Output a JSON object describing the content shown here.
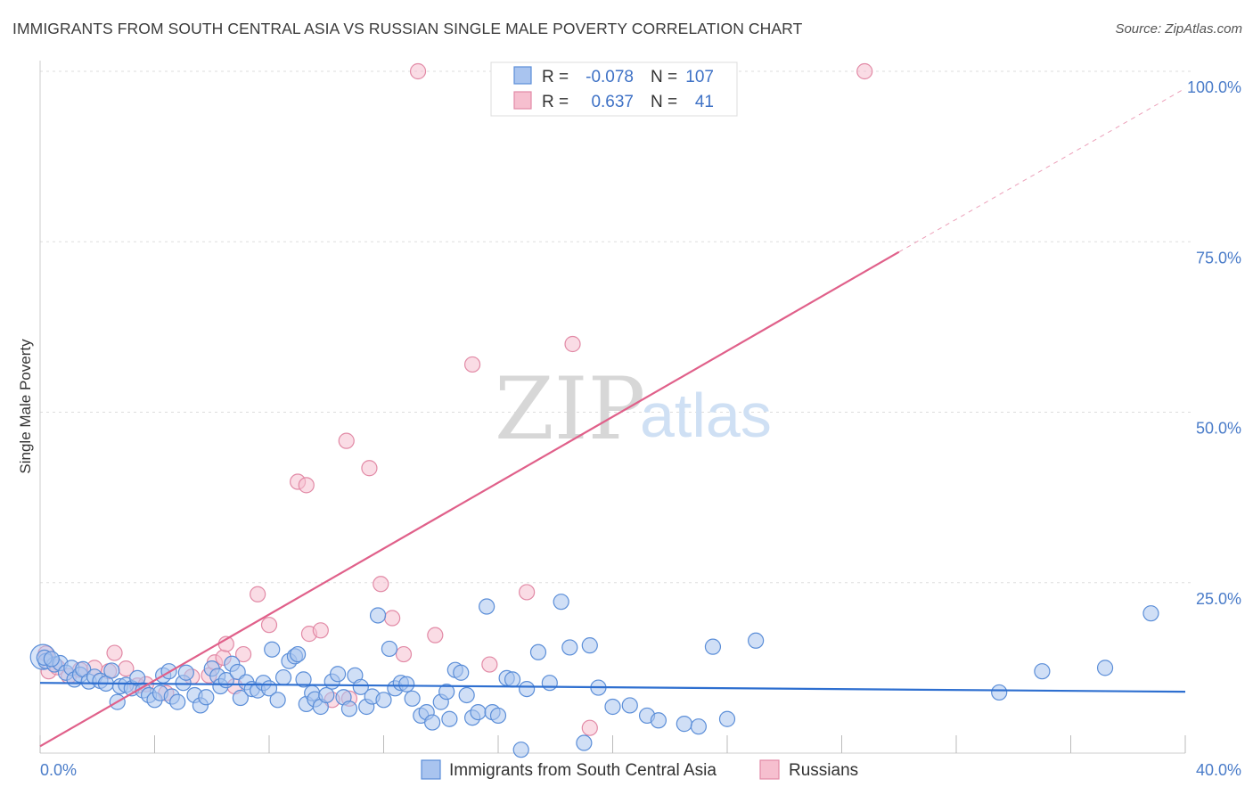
{
  "header": {
    "title": "IMMIGRANTS FROM SOUTH CENTRAL ASIA VS RUSSIAN SINGLE MALE POVERTY CORRELATION CHART",
    "source": "Source: ZipAtlas.com"
  },
  "watermark": {
    "zip": "ZIP",
    "atlas": "atlas"
  },
  "colors": {
    "blue_fill": "#a9c4ef",
    "blue_stroke": "#5b8ed8",
    "blue_line": "#2e6fd0",
    "pink_fill": "#f6bfcf",
    "pink_stroke": "#e28aa6",
    "pink_line": "#e0608a",
    "tick": "#4a7cc9",
    "grid": "#dddddd"
  },
  "stats": {
    "r_label": "R =",
    "n_label": "N =",
    "blue": {
      "r": "-0.078",
      "n": "107"
    },
    "pink": {
      "r": "0.637",
      "n": "41"
    }
  },
  "chart_data": {
    "type": "scatter",
    "ylabel": "Single Male Poverty",
    "xlim": [
      0,
      40
    ],
    "ylim": [
      0,
      100
    ],
    "x_tick_labels": [
      "0.0%",
      "40.0%"
    ],
    "y_ticks": [
      25,
      50,
      75,
      100
    ],
    "y_tick_labels": [
      "25.0%",
      "50.0%",
      "75.0%",
      "100.0%"
    ],
    "legend": {
      "placement": "bottom",
      "entries": [
        "Immigrants from South Central Asia",
        "Russians"
      ]
    },
    "series": [
      {
        "name": "Immigrants from South Central Asia",
        "trend": {
          "x": [
            0,
            40
          ],
          "y": [
            10.3,
            9.0
          ]
        },
        "points": [
          [
            0.2,
            13.5
          ],
          [
            0.5,
            13.0
          ],
          [
            0.7,
            13.2
          ],
          [
            0.9,
            11.8
          ],
          [
            1.1,
            12.5
          ],
          [
            1.2,
            10.8
          ],
          [
            1.4,
            11.5
          ],
          [
            1.5,
            12.3
          ],
          [
            1.7,
            10.5
          ],
          [
            1.9,
            11.2
          ],
          [
            2.1,
            10.6
          ],
          [
            2.3,
            10.2
          ],
          [
            2.5,
            12.1
          ],
          [
            2.7,
            7.5
          ],
          [
            2.8,
            9.8
          ],
          [
            3.0,
            10.0
          ],
          [
            3.2,
            9.5
          ],
          [
            3.4,
            11.0
          ],
          [
            3.6,
            9.2
          ],
          [
            3.8,
            8.5
          ],
          [
            4.0,
            7.8
          ],
          [
            4.2,
            8.8
          ],
          [
            4.3,
            11.4
          ],
          [
            4.5,
            12.0
          ],
          [
            4.6,
            8.3
          ],
          [
            4.8,
            7.5
          ],
          [
            5.0,
            10.3
          ],
          [
            5.1,
            11.8
          ],
          [
            5.4,
            8.5
          ],
          [
            5.6,
            7.0
          ],
          [
            5.8,
            8.2
          ],
          [
            6.0,
            12.4
          ],
          [
            6.2,
            11.3
          ],
          [
            6.3,
            9.8
          ],
          [
            6.5,
            10.7
          ],
          [
            6.7,
            13.1
          ],
          [
            6.9,
            11.9
          ],
          [
            7.0,
            8.1
          ],
          [
            7.2,
            10.4
          ],
          [
            7.4,
            9.4
          ],
          [
            7.6,
            9.2
          ],
          [
            7.8,
            10.3
          ],
          [
            8.0,
            9.5
          ],
          [
            8.1,
            15.2
          ],
          [
            8.3,
            7.8
          ],
          [
            8.5,
            11.1
          ],
          [
            8.7,
            13.5
          ],
          [
            8.9,
            14.2
          ],
          [
            9.0,
            14.5
          ],
          [
            9.2,
            10.8
          ],
          [
            9.3,
            7.2
          ],
          [
            9.5,
            8.8
          ],
          [
            9.6,
            7.9
          ],
          [
            9.8,
            6.8
          ],
          [
            10.0,
            8.5
          ],
          [
            10.2,
            10.5
          ],
          [
            10.4,
            11.6
          ],
          [
            10.6,
            8.2
          ],
          [
            10.8,
            6.5
          ],
          [
            11.0,
            11.4
          ],
          [
            11.2,
            9.7
          ],
          [
            11.4,
            6.8
          ],
          [
            11.6,
            8.3
          ],
          [
            11.8,
            20.2
          ],
          [
            12.0,
            7.8
          ],
          [
            12.2,
            15.3
          ],
          [
            12.4,
            9.5
          ],
          [
            12.6,
            10.3
          ],
          [
            12.8,
            10.1
          ],
          [
            13.0,
            8.0
          ],
          [
            13.3,
            5.5
          ],
          [
            13.5,
            6.0
          ],
          [
            13.7,
            4.5
          ],
          [
            14.0,
            7.5
          ],
          [
            14.2,
            9.0
          ],
          [
            14.3,
            5.0
          ],
          [
            14.5,
            12.2
          ],
          [
            14.7,
            11.8
          ],
          [
            14.9,
            8.5
          ],
          [
            15.1,
            5.2
          ],
          [
            15.3,
            6.0
          ],
          [
            15.6,
            21.5
          ],
          [
            15.8,
            6.0
          ],
          [
            16.0,
            5.5
          ],
          [
            16.3,
            11.0
          ],
          [
            16.5,
            10.8
          ],
          [
            16.8,
            0.5
          ],
          [
            17.0,
            9.4
          ],
          [
            17.4,
            14.8
          ],
          [
            17.8,
            10.3
          ],
          [
            18.2,
            22.2
          ],
          [
            18.5,
            15.5
          ],
          [
            19.0,
            1.5
          ],
          [
            19.2,
            15.8
          ],
          [
            19.5,
            9.6
          ],
          [
            20.0,
            6.8
          ],
          [
            20.6,
            7.0
          ],
          [
            21.2,
            5.5
          ],
          [
            21.6,
            4.8
          ],
          [
            22.5,
            4.3
          ],
          [
            23.0,
            3.9
          ],
          [
            23.5,
            15.6
          ],
          [
            24.0,
            5.0
          ],
          [
            25.0,
            16.5
          ],
          [
            33.5,
            8.9
          ],
          [
            35.0,
            12.0
          ],
          [
            37.2,
            12.5
          ],
          [
            38.8,
            20.5
          ],
          [
            0.15,
            14.0
          ],
          [
            0.4,
            13.8
          ]
        ],
        "large": [
          [
            0.1,
            14.1
          ]
        ]
      },
      {
        "name": "Russians",
        "trend": {
          "x": [
            0,
            30
          ],
          "y": [
            1.0,
            73.5
          ]
        },
        "trend_extension": {
          "x": [
            30,
            40
          ],
          "y": [
            73.5,
            97.5
          ]
        },
        "points": [
          [
            0.3,
            12.0
          ],
          [
            0.6,
            12.6
          ],
          [
            1.0,
            11.3
          ],
          [
            1.4,
            12.2
          ],
          [
            1.9,
            12.5
          ],
          [
            2.4,
            12.0
          ],
          [
            2.6,
            14.7
          ],
          [
            3.0,
            12.4
          ],
          [
            3.4,
            9.9
          ],
          [
            3.7,
            10.1
          ],
          [
            4.4,
            8.8
          ],
          [
            5.3,
            11.2
          ],
          [
            5.9,
            11.4
          ],
          [
            6.1,
            13.3
          ],
          [
            6.4,
            14.0
          ],
          [
            6.5,
            16.0
          ],
          [
            6.8,
            9.8
          ],
          [
            7.1,
            14.5
          ],
          [
            7.6,
            23.3
          ],
          [
            8.0,
            18.8
          ],
          [
            9.0,
            39.8
          ],
          [
            9.3,
            39.3
          ],
          [
            9.4,
            17.5
          ],
          [
            9.8,
            18.0
          ],
          [
            10.2,
            7.8
          ],
          [
            10.7,
            45.8
          ],
          [
            10.8,
            8.0
          ],
          [
            11.5,
            41.8
          ],
          [
            11.9,
            24.8
          ],
          [
            12.3,
            19.8
          ],
          [
            12.7,
            14.5
          ],
          [
            13.2,
            100.0
          ],
          [
            13.8,
            17.3
          ],
          [
            15.1,
            57.0
          ],
          [
            15.7,
            13.0
          ],
          [
            17.0,
            23.6
          ],
          [
            18.6,
            60.0
          ],
          [
            19.2,
            3.7
          ],
          [
            20.1,
            100.0
          ],
          [
            28.8,
            100.0
          ],
          [
            0.2,
            14.6
          ]
        ]
      }
    ]
  }
}
